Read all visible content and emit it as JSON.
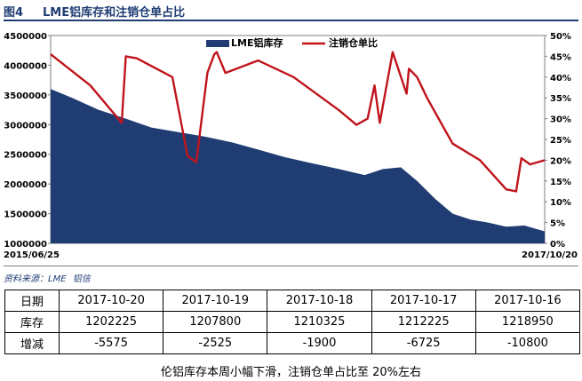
{
  "figure": {
    "number": "图4",
    "title": "LME铝库存和注销仓单占比",
    "source": "资料来源：LME",
    "source_org": "铝信",
    "note": "伦铝库存本周小幅下滑，注销仓单占比至 20%左右"
  },
  "colors": {
    "stock": "#1f3d73",
    "ratio": "#c0141c",
    "header": "#1f3d73"
  },
  "chart_data": {
    "type": "area",
    "x_start_label": "2015/06/25",
    "x_end_label": "2017/10/20",
    "x_range": [
      "2015-06-25",
      "2017-10-20"
    ],
    "y_left_ticks": [
      "4500000",
      "4000000",
      "3500000",
      "3000000",
      "2500000",
      "2000000",
      "1500000",
      "1000000"
    ],
    "y_left_range": [
      1000000,
      4500000
    ],
    "y_right_ticks": [
      "50%",
      "45%",
      "40%",
      "35%",
      "30%",
      "25%",
      "20%",
      "15%",
      "10%",
      "5%",
      "0%"
    ],
    "y_right_range": [
      0,
      50
    ],
    "legend_position": "top-center",
    "series": [
      {
        "name": "LME铝库存",
        "type": "area",
        "axis": "left",
        "x": [
          "2015-06-25",
          "2015-08-01",
          "2015-09-15",
          "2015-11-01",
          "2015-12-15",
          "2016-02-01",
          "2016-03-15",
          "2016-05-01",
          "2016-06-15",
          "2016-08-01",
          "2016-09-15",
          "2016-11-01",
          "2016-12-15",
          "2017-01-15",
          "2017-02-15",
          "2017-03-15",
          "2017-04-15",
          "2017-05-15",
          "2017-06-15",
          "2017-07-15",
          "2017-08-15",
          "2017-09-15",
          "2017-10-20"
        ],
        "values": [
          3600000,
          3450000,
          3250000,
          3100000,
          2950000,
          2870000,
          2800000,
          2700000,
          2580000,
          2450000,
          2350000,
          2250000,
          2150000,
          2250000,
          2280000,
          2050000,
          1750000,
          1500000,
          1400000,
          1350000,
          1280000,
          1300000,
          1202225
        ]
      },
      {
        "name": "注销仓单比",
        "type": "line",
        "axis": "right",
        "x": [
          "2015-06-25",
          "2015-09-01",
          "2015-10-25",
          "2015-11-01",
          "2015-11-20",
          "2016-01-20",
          "2016-02-15",
          "2016-03-01",
          "2016-03-20",
          "2016-04-01",
          "2016-04-05",
          "2016-04-20",
          "2016-06-15",
          "2016-08-15",
          "2016-11-01",
          "2016-12-01",
          "2016-12-20",
          "2017-01-01",
          "2017-01-10",
          "2017-02-01",
          "2017-02-25",
          "2017-03-01",
          "2017-03-15",
          "2017-04-01",
          "2017-05-15",
          "2017-07-01",
          "2017-08-15",
          "2017-09-01",
          "2017-09-10",
          "2017-09-25",
          "2017-10-20"
        ],
        "values": [
          45.5,
          38,
          29,
          45,
          44.5,
          40,
          21,
          19.5,
          41,
          45.5,
          46,
          41,
          44,
          40,
          32,
          28.5,
          30,
          38,
          29,
          46,
          36,
          42,
          40,
          35,
          24,
          20,
          13,
          12.5,
          20.5,
          19,
          20
        ]
      }
    ]
  },
  "table": {
    "header_label": "日期",
    "dates": [
      "2017-10-20",
      "2017-10-19",
      "2017-10-18",
      "2017-10-17",
      "2017-10-16"
    ],
    "rows": [
      {
        "label": "库存",
        "values": [
          "1202225",
          "1207800",
          "1210325",
          "1212225",
          "1218950"
        ]
      },
      {
        "label": "增减",
        "values": [
          "-5575",
          "-2525",
          "-1900",
          "-6725",
          "-10800"
        ]
      }
    ]
  }
}
